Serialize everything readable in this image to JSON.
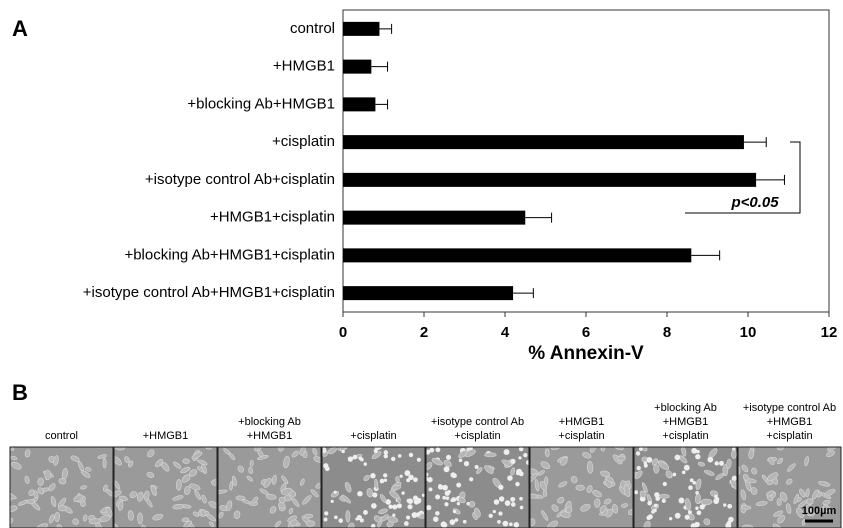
{
  "panel_a_label": "A",
  "chart_data": {
    "type": "hbar",
    "categories": [
      "control",
      "+HMGB1",
      "+blocking Ab+HMGB1",
      "+cisplatin",
      "+isotype control Ab+cisplatin",
      "+HMGB1+cisplatin",
      "+blocking Ab+HMGB1+cisplatin",
      "+isotype control Ab+HMGB1+cisplatin"
    ],
    "values": [
      0.9,
      0.7,
      0.8,
      9.9,
      10.2,
      4.5,
      8.6,
      4.2
    ],
    "errors": [
      0.3,
      0.4,
      0.3,
      0.55,
      0.7,
      0.65,
      0.7,
      0.5
    ],
    "color": "#000000",
    "xlim": [
      0,
      12
    ],
    "xticks": [
      0,
      2,
      4,
      6,
      8,
      10,
      12
    ],
    "xlabel": "% Annexin-V",
    "annotation": "p<0.05"
  },
  "panel_b": {
    "label": "B",
    "captions": [
      [
        "control"
      ],
      [
        "+HMGB1"
      ],
      [
        "+blocking Ab",
        "+HMGB1"
      ],
      [
        "+cisplatin"
      ],
      [
        "+isotype control Ab",
        "+cisplatin"
      ],
      [
        "+HMGB1",
        "+cisplatin"
      ],
      [
        "+blocking Ab",
        "+HMGB1",
        "+cisplatin"
      ],
      [
        "+isotype control Ab",
        "+HMGB1",
        "+cisplatin"
      ]
    ],
    "scale_bar": "100µm"
  }
}
